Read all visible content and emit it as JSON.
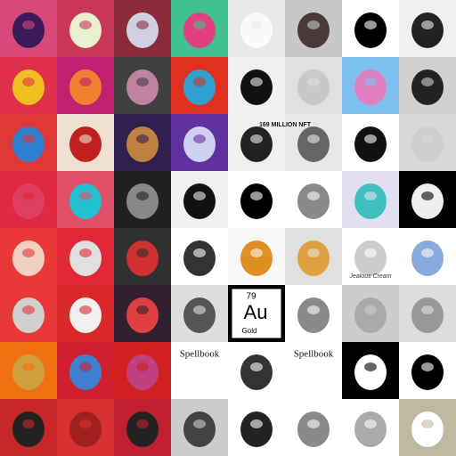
{
  "tiles": {
    "element": {
      "number": "79",
      "symbol": "Au",
      "name": "Gold"
    },
    "spellbook_left": {
      "title": "Spellbook"
    },
    "spellbook_right": {
      "title": "Spellbook"
    },
    "headline": {
      "text": "169 MILLION NFT"
    },
    "jar": {
      "text": "Jealous Cream"
    }
  }
}
